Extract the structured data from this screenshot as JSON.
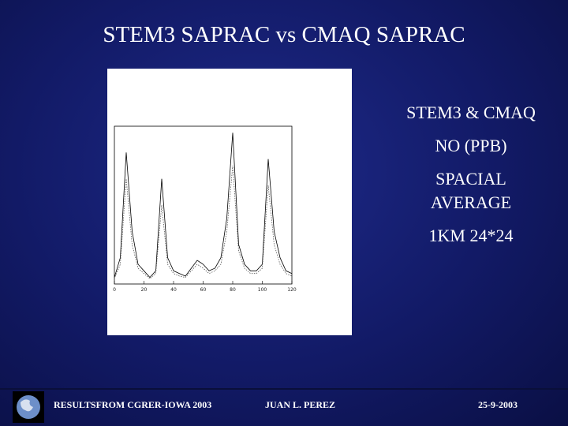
{
  "slide": {
    "title": "STEM3 SAPRAC vs CMAQ SAPRAC",
    "side_text": [
      "STEM3 & CMAQ",
      "NO (PPB)",
      "SPACIAL",
      "AVERAGE",
      "1KM 24*24"
    ],
    "footer": {
      "left": "RESULTSFROM CGRER-IOWA 2003",
      "center": "JUAN L. PEREZ",
      "right": "25-9-2003"
    }
  },
  "chart_data": {
    "type": "line",
    "x": [
      0,
      4,
      8,
      12,
      16,
      20,
      24,
      28,
      32,
      36,
      40,
      44,
      48,
      52,
      56,
      60,
      64,
      68,
      72,
      76,
      80,
      84,
      88,
      92,
      96,
      100,
      104,
      108,
      112,
      116,
      120
    ],
    "series": [
      {
        "color": "#000000",
        "values": [
          0.5,
          2,
          10,
          4,
          1.5,
          1,
          0.5,
          1,
          8,
          2,
          1,
          0.8,
          0.6,
          1.2,
          1.8,
          1.5,
          1,
          1.2,
          2,
          5,
          11.5,
          3,
          1.5,
          1,
          1,
          1.5,
          9.5,
          4,
          2,
          1,
          0.8
        ]
      },
      {
        "color": "#555555",
        "values": [
          0.4,
          1.5,
          8,
          3,
          1.2,
          0.8,
          0.4,
          0.8,
          6,
          1.5,
          0.8,
          0.6,
          0.5,
          1,
          1.5,
          1.2,
          0.8,
          1,
          1.5,
          4,
          9,
          2.5,
          1.2,
          0.8,
          0.8,
          1.2,
          7.5,
          3,
          1.5,
          0.8,
          0.6
        ]
      }
    ],
    "xlim": [
      0,
      120
    ],
    "xticks": [
      0,
      20,
      40,
      60,
      80,
      100,
      120
    ],
    "ylim": [
      0,
      12
    ]
  }
}
